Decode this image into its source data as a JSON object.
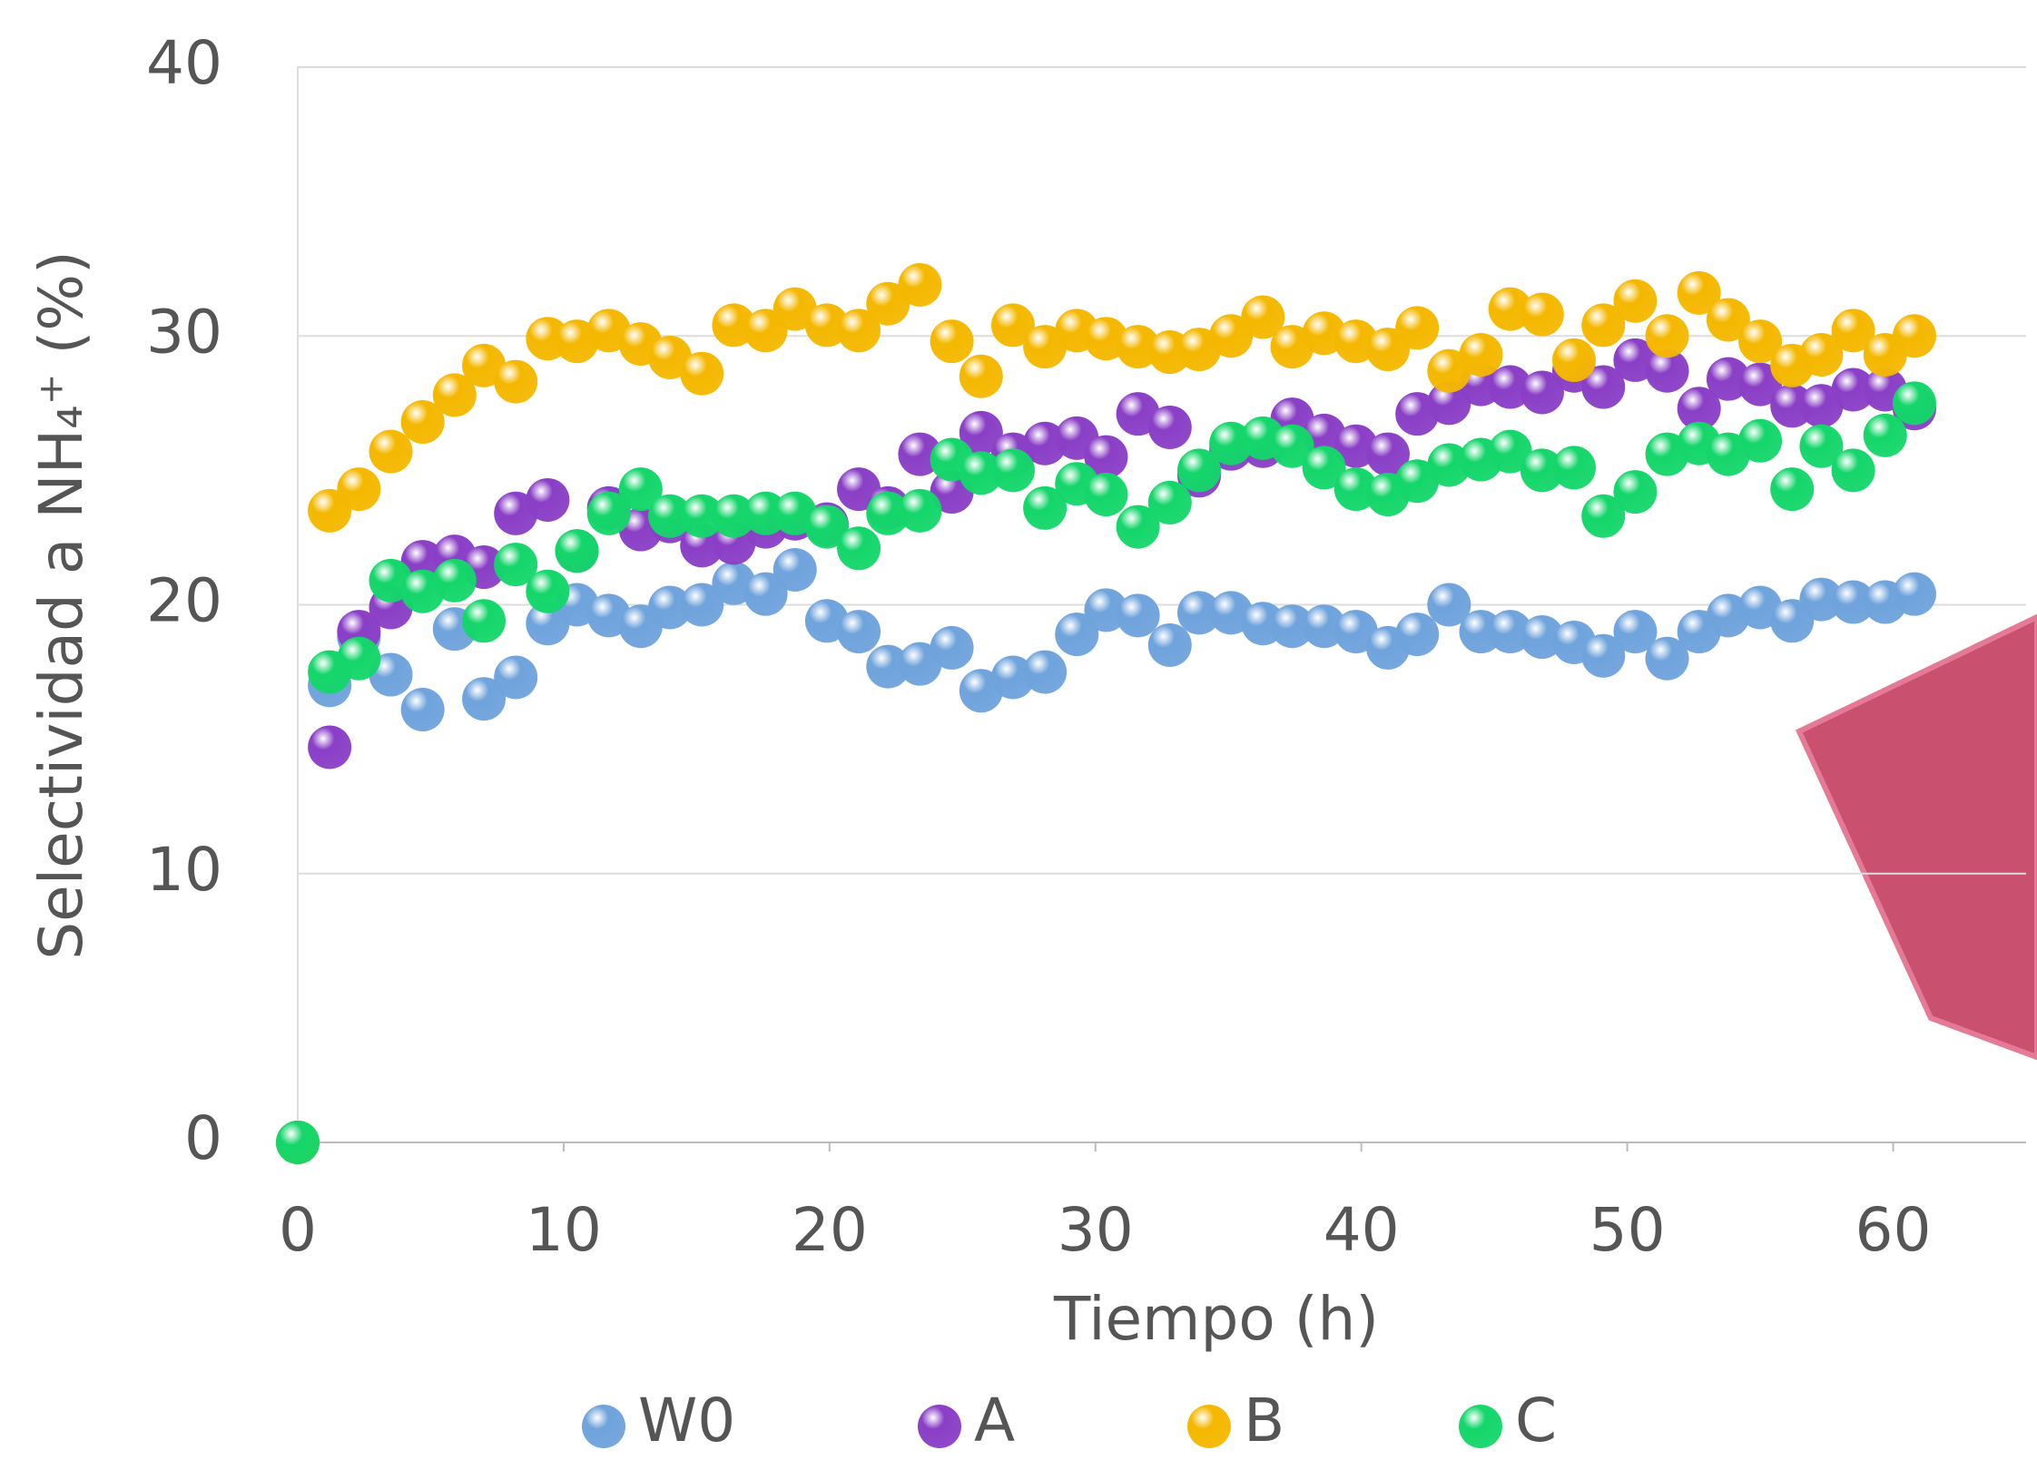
{
  "chart_data": {
    "type": "scatter",
    "xlabel": "Tiempo (h)",
    "ylabel": "Selectividad a NH₄⁺ (%)",
    "x": [
      0,
      1.2,
      2.3,
      3.5,
      4.7,
      5.9,
      7.0,
      8.2,
      9.4,
      10.5,
      11.7,
      12.9,
      14.0,
      15.2,
      16.4,
      17.6,
      18.7,
      19.9,
      21.1,
      22.2,
      23.4,
      24.6,
      25.7,
      26.9,
      28.1,
      29.3,
      30.4,
      31.6,
      32.8,
      33.9,
      35.1,
      36.3,
      37.4,
      38.6,
      39.8,
      41.0,
      42.1,
      43.3,
      44.5,
      45.6,
      46.8,
      48.0,
      49.1,
      50.3,
      51.5,
      52.7,
      53.8,
      55.0,
      56.2,
      57.3,
      58.5,
      59.7,
      60.8
    ],
    "series": [
      {
        "name": "W0",
        "color": "#6fa3dc",
        "values": [
          0,
          17.0,
          18.8,
          17.4,
          16.1,
          19.1,
          16.5,
          17.3,
          19.3,
          20.0,
          19.6,
          19.2,
          19.9,
          20.0,
          20.8,
          20.4,
          21.3,
          19.4,
          19.0,
          17.7,
          17.8,
          18.4,
          16.8,
          17.3,
          17.5,
          18.9,
          19.8,
          19.6,
          18.5,
          19.7,
          19.7,
          19.3,
          19.2,
          19.2,
          19.0,
          18.4,
          18.9,
          20.0,
          19.0,
          19.0,
          18.8,
          18.6,
          18.1,
          19.0,
          18.0,
          19.0,
          19.6,
          19.9,
          19.4,
          20.2,
          20.1,
          20.1,
          20.4
        ]
      },
      {
        "name": "A",
        "color": "#8a3fc6",
        "values": [
          0,
          14.7,
          19.0,
          19.9,
          21.6,
          21.8,
          21.4,
          23.4,
          23.9,
          22.0,
          23.6,
          22.8,
          23.1,
          22.2,
          22.3,
          22.9,
          23.2,
          23.0,
          24.3,
          23.6,
          25.6,
          24.2,
          26.4,
          25.6,
          26.0,
          26.2,
          25.5,
          27.1,
          26.6,
          24.8,
          25.8,
          25.9,
          26.9,
          26.3,
          25.9,
          25.6,
          27.1,
          27.5,
          28.2,
          28.1,
          27.9,
          28.7,
          28.1,
          29.1,
          28.7,
          27.3,
          28.4,
          28.2,
          27.4,
          27.4,
          28.0,
          28.0,
          27.3
        ]
      },
      {
        "name": "B",
        "color": "#f5b800",
        "values": [
          0,
          23.5,
          24.3,
          25.7,
          26.8,
          27.8,
          28.9,
          28.3,
          29.9,
          29.8,
          30.2,
          29.7,
          29.2,
          28.6,
          30.4,
          30.2,
          31.0,
          30.4,
          30.2,
          31.2,
          31.9,
          29.8,
          28.5,
          30.4,
          29.6,
          30.2,
          29.9,
          29.6,
          29.4,
          29.5,
          30.0,
          30.7,
          29.6,
          30.1,
          29.8,
          29.5,
          30.3,
          28.7,
          29.3,
          31.0,
          30.8,
          29.1,
          30.4,
          31.3,
          30.0,
          31.6,
          30.6,
          29.8,
          28.9,
          29.3,
          30.2,
          29.3,
          30.0
        ]
      },
      {
        "name": "C",
        "color": "#14d66a",
        "values": [
          0,
          17.5,
          18.0,
          20.9,
          20.5,
          20.9,
          19.4,
          21.5,
          20.5,
          22.0,
          23.4,
          24.3,
          23.3,
          23.3,
          23.3,
          23.4,
          23.4,
          22.9,
          22.1,
          23.4,
          23.5,
          25.4,
          24.9,
          25.0,
          23.6,
          24.5,
          24.1,
          22.9,
          23.8,
          25.0,
          26.0,
          26.2,
          25.9,
          25.1,
          24.3,
          24.1,
          24.6,
          25.2,
          25.4,
          25.7,
          25.0,
          25.1,
          23.3,
          24.2,
          25.6,
          26.0,
          25.6,
          26.1,
          24.3,
          25.9,
          25.0,
          26.3,
          27.5
        ]
      }
    ],
    "xlim": [
      0,
      65
    ],
    "xticks": [
      0,
      10,
      20,
      30,
      40,
      50,
      60
    ],
    "ylim": [
      0,
      40
    ],
    "yticks": [
      0,
      10,
      20,
      30,
      40
    ],
    "grid": true,
    "legend": "bottom"
  }
}
